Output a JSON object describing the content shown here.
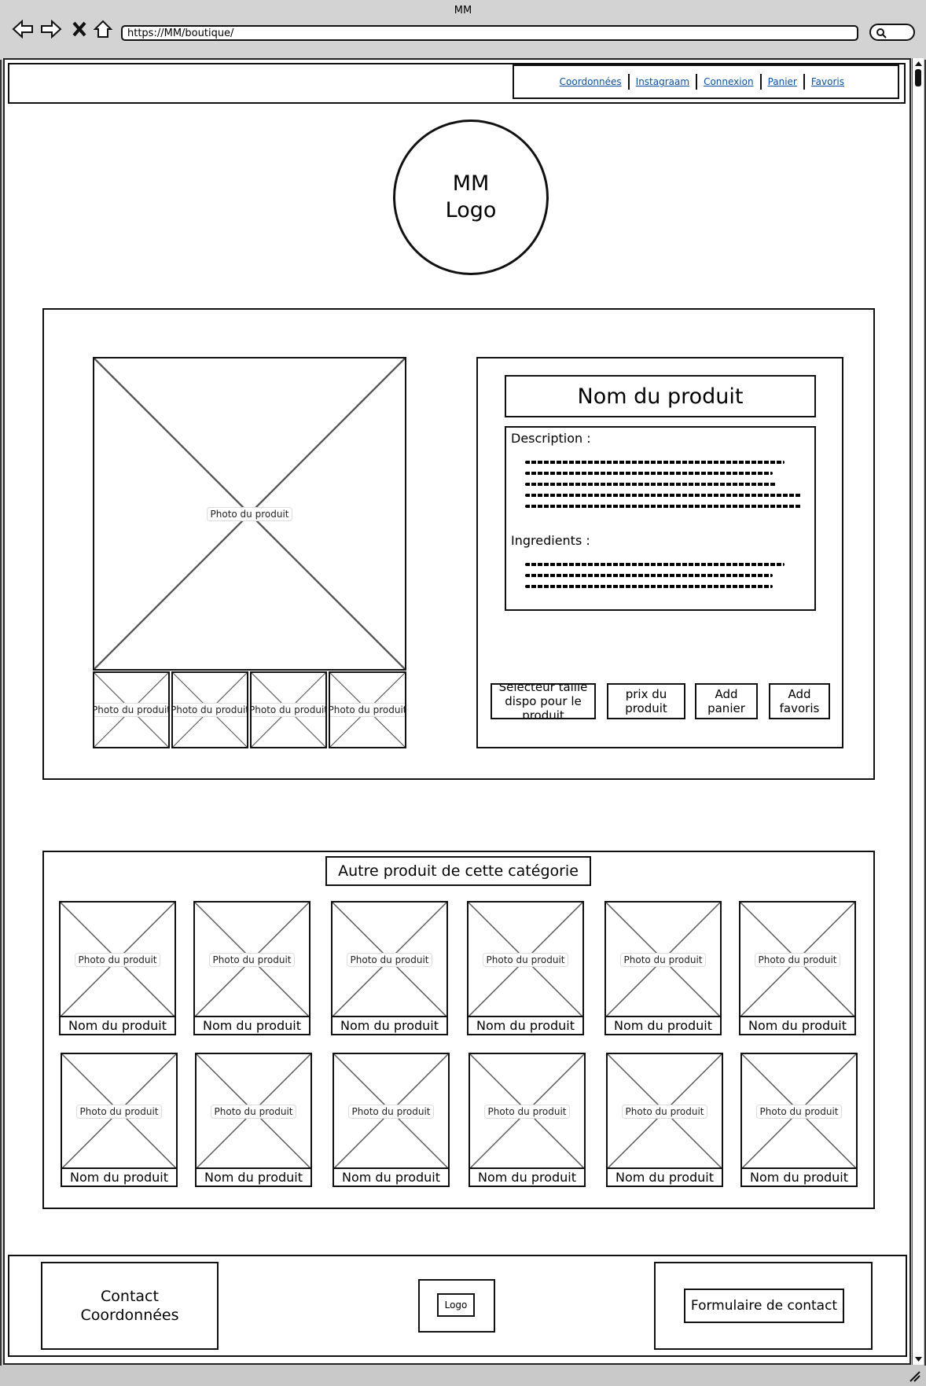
{
  "window": {
    "title": "MM"
  },
  "address_bar": {
    "url": "https://MM/boutique/"
  },
  "nav": {
    "links": [
      "Coordonnées",
      "Instagraam",
      "Connexion",
      "Panier",
      "Favoris"
    ]
  },
  "logo": {
    "text": "MM\nLogo"
  },
  "product": {
    "main_photo_label": "Photo du produit",
    "thumbnails": [
      "Photo du produit",
      "Photo du produit",
      "Photo du produit",
      "Photo du produit"
    ],
    "name": "Nom du produit",
    "description_label": "Description :",
    "ingredients_label": "Ingredients :",
    "buttons": {
      "size_selector": "Sélecteur taille dispo pour le produit",
      "price": "prix du produit",
      "add_cart": "Add panier",
      "add_favorites": "Add favoris"
    }
  },
  "related": {
    "title": "Autre produit de cette catégorie",
    "rows": [
      [
        {
          "photo": "Photo du produit",
          "name": "Nom du produit"
        },
        {
          "photo": "Photo du produit",
          "name": "Nom du produit"
        },
        {
          "photo": "Photo du produit",
          "name": "Nom du produit"
        },
        {
          "photo": "Photo du produit",
          "name": "Nom du produit"
        },
        {
          "photo": "Photo du produit",
          "name": "Nom du produit"
        },
        {
          "photo": "Photo du produit",
          "name": "Nom du produit"
        }
      ],
      [
        {
          "photo": "Photo du produit",
          "name": "Nom du produit"
        },
        {
          "photo": "Photo du produit",
          "name": "Nom du produit"
        },
        {
          "photo": "Photo du produit",
          "name": "Nom du produit"
        },
        {
          "photo": "Photo du produit",
          "name": "Nom du produit"
        },
        {
          "photo": "Photo du produit",
          "name": "Nom du produit"
        },
        {
          "photo": "Photo du produit",
          "name": "Nom du produit"
        }
      ]
    ]
  },
  "footer": {
    "contact": "Contact\nCoordonnées",
    "logo": "Logo",
    "contact_form": "Formulaire de contact"
  }
}
